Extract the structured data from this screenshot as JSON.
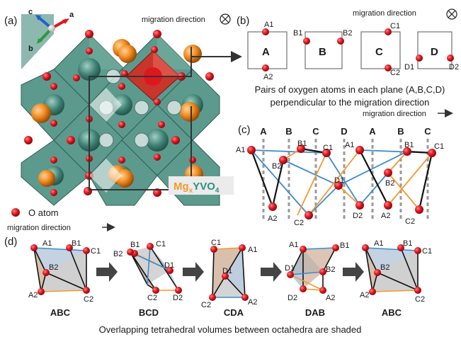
{
  "panel_a": {
    "label": "(a)",
    "migration_label": "migration direction",
    "axes": {
      "a": "a",
      "b": "b",
      "c": "c"
    },
    "formula": {
      "p1": "Mg",
      "p2": "x",
      "p3": "YVO",
      "p4": "4"
    },
    "legend_label": "O atom",
    "migration_arrow_label": "migration direction"
  },
  "panel_b": {
    "label": "(b)",
    "migration_label": "migration direction",
    "planes": [
      {
        "name": "A",
        "top": "A1",
        "bottom": "A2"
      },
      {
        "name": "B",
        "left": "B1",
        "right": "B2"
      },
      {
        "name": "C",
        "top": "C1",
        "bottom": "C2"
      },
      {
        "name": "D",
        "left": "D1",
        "right": "D2"
      }
    ],
    "caption_line1": "Pairs of oxygen atoms in each plane (A,B,C,D)",
    "caption_line2": "perpendicular to the migration direction"
  },
  "panel_c": {
    "label": "(c)",
    "migration_label": "migration direction",
    "columns": [
      "A",
      "B",
      "C",
      "D",
      "A",
      "B",
      "C"
    ],
    "atoms": [
      "A1",
      "B2",
      "B1",
      "C1",
      "D1",
      "A1",
      "B2",
      "B1",
      "C1",
      "A2",
      "C2",
      "D2",
      "A2",
      "C2"
    ]
  },
  "panel_d": {
    "label": "(d)",
    "steps": [
      {
        "name": "ABC",
        "atoms": [
          "A1",
          "B1",
          "C1",
          "B2",
          "A2",
          "C2"
        ]
      },
      {
        "name": "BCD",
        "atoms": [
          "B1",
          "C1",
          "B2",
          "D1",
          "C2",
          "D2"
        ]
      },
      {
        "name": "CDA",
        "atoms": [
          "C1",
          "A1",
          "D1",
          "C2",
          "A2"
        ]
      },
      {
        "name": "DAB",
        "atoms": [
          "A1",
          "B1",
          "D1",
          "B2",
          "D2",
          "A2"
        ]
      },
      {
        "name": "ABC",
        "atoms": [
          "A1",
          "B1",
          "C1",
          "B2",
          "A2",
          "C2"
        ]
      }
    ],
    "caption": "Overlapping tetrahedral volumes between octahedra are shaded"
  },
  "colors": {
    "oxygen": "#e0161e",
    "octahedron": "#4f8c80",
    "v_tetra": "#c8352a",
    "mg": "#f08a1e",
    "line_blue": "#3a8bd0",
    "line_orange": "#f29a2e",
    "formula_mg": "#f29a2e",
    "formula_y": "#2f8f7f"
  }
}
